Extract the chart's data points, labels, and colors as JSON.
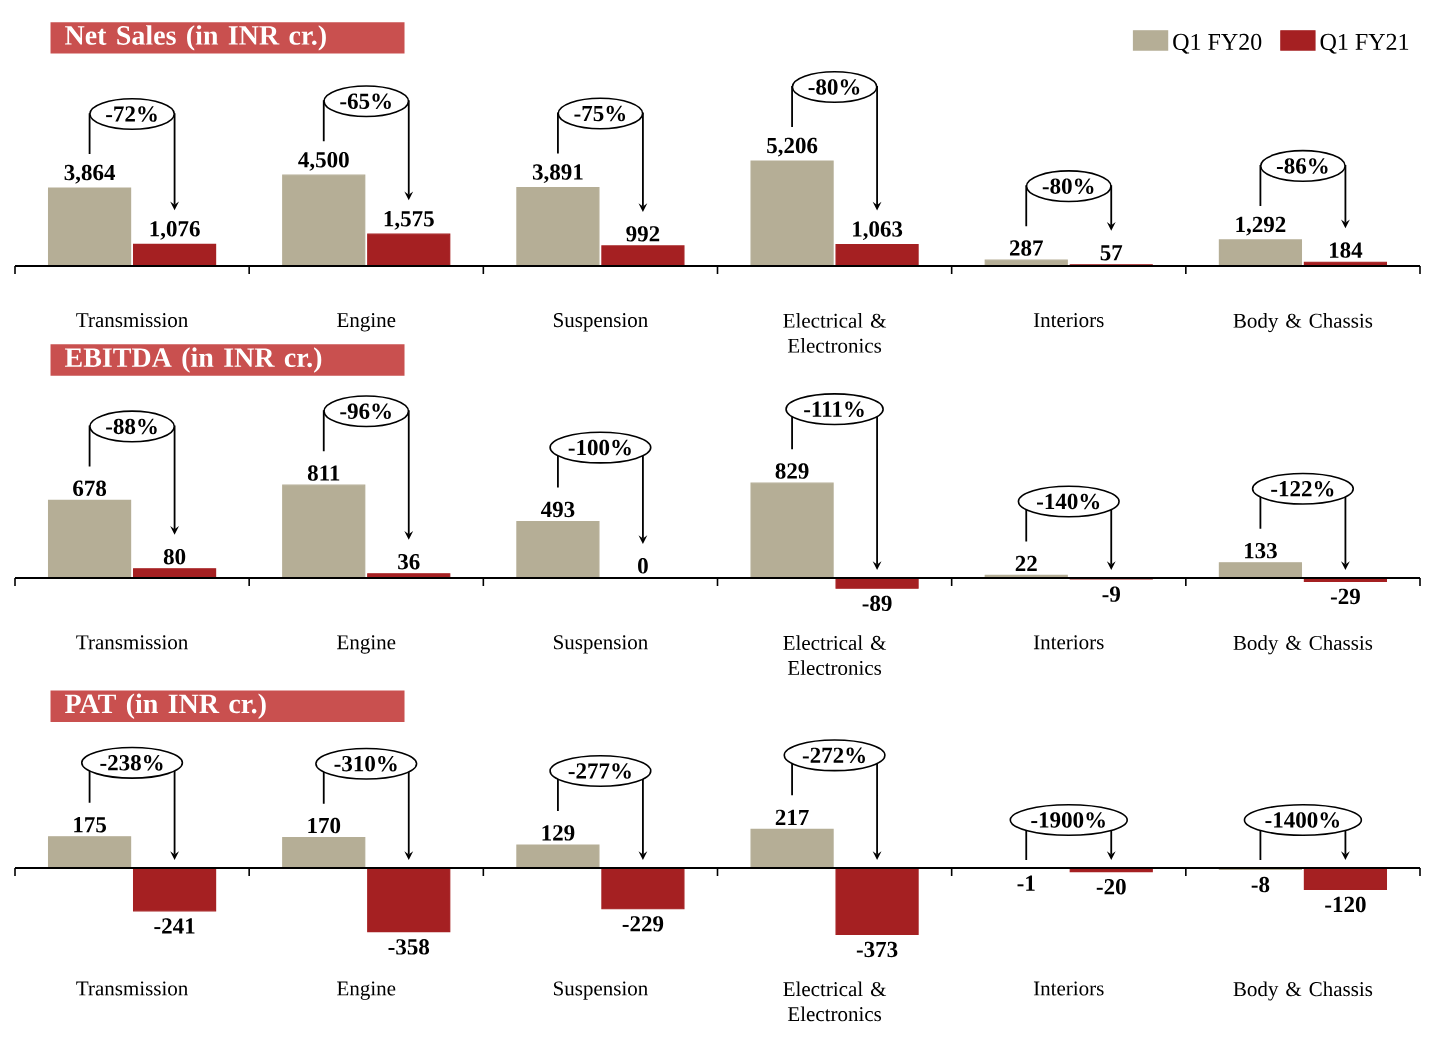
{
  "chart_data": [
    {
      "type": "bar",
      "title": "Net Sales (in INR cr.)",
      "categories": [
        "Transmission",
        "Engine",
        "Suspension",
        "Electrical & Electronics",
        "Interiors",
        "Body & Chassis"
      ],
      "legend": "top right",
      "series": [
        {
          "name": "Q1 FY20",
          "color": "#b5ae96",
          "values": [
            3864,
            4500,
            3891,
            5206,
            287,
            1292
          ],
          "value_labels": [
            "3,864",
            "4,500",
            "3,891",
            "5,206",
            "287",
            "1,292"
          ]
        },
        {
          "name": "Q1 FY21",
          "color": "#a52022",
          "values": [
            1076,
            1575,
            992,
            1063,
            57,
            184
          ],
          "value_labels": [
            "1,076",
            "1,575",
            "992",
            "1,063",
            "57",
            "184"
          ]
        }
      ],
      "annotations": [
        "-72%",
        "-65%",
        "-75%",
        "-80%",
        "-80%",
        "-86%"
      ]
    },
    {
      "type": "bar",
      "title": "EBITDA (in INR cr.)",
      "categories": [
        "Transmission",
        "Engine",
        "Suspension",
        "Electrical & Electronics",
        "Interiors",
        "Body & Chassis"
      ],
      "series": [
        {
          "color": "#b5ae96",
          "values": [
            678,
            811,
            493,
            829,
            22,
            133
          ],
          "value_labels": [
            "678",
            "811",
            "493",
            "829",
            "22",
            "133"
          ]
        },
        {
          "color": "#a52022",
          "values": [
            80,
            36,
            0,
            -89,
            -9,
            -29
          ],
          "value_labels": [
            "80",
            "36",
            "0",
            "-89",
            "-9",
            "-29"
          ]
        }
      ],
      "annotations": [
        "-88%",
        "-96%",
        "-100%",
        "-111%",
        "-140%",
        "-122%"
      ]
    },
    {
      "type": "bar",
      "title": "PAT (in INR cr.)",
      "categories": [
        "Transmission",
        "Engine",
        "Suspension",
        "Electrical & Electronics",
        "Interiors",
        "Body & Chassis"
      ],
      "series": [
        {
          "color": "#b5ae96",
          "values": [
            175,
            170,
            129,
            217,
            -1,
            -8
          ],
          "value_labels": [
            "175",
            "170",
            "129",
            "217",
            "-1",
            "-8"
          ]
        },
        {
          "color": "#a52022",
          "values": [
            -241,
            -358,
            -229,
            -373,
            -20,
            -120
          ],
          "value_labels": [
            "-241",
            "-358",
            "-229",
            "-373",
            "-20",
            "-120"
          ]
        }
      ],
      "annotations": [
        "-238%",
        "-310%",
        "-277%",
        "-272%",
        "-1900%",
        "-1400%"
      ]
    }
  ]
}
